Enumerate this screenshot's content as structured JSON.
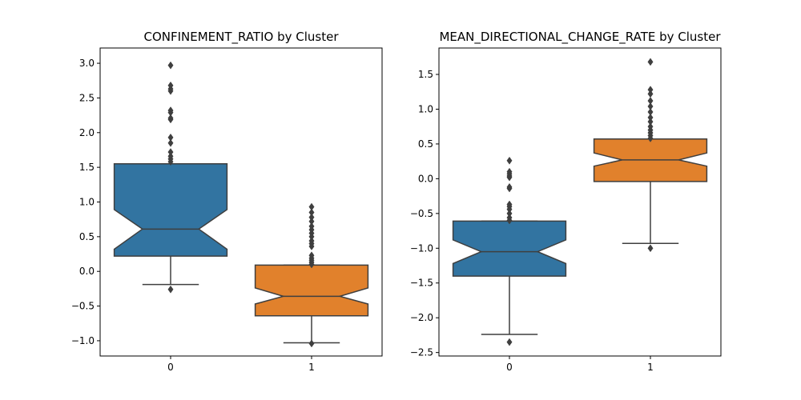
{
  "chart_data": [
    {
      "type": "boxplot",
      "title": "CONFINEMENT_RATIO by Cluster",
      "xlabel": "",
      "ylabel": "",
      "categories": [
        "0",
        "1"
      ],
      "ylim": [
        -1.22,
        3.22
      ],
      "yticks": [
        -1.0,
        -0.5,
        0.0,
        0.5,
        1.0,
        1.5,
        2.0,
        2.5,
        3.0
      ],
      "ytick_labels": [
        "−1.0",
        "−0.5",
        "0.0",
        "0.5",
        "1.0",
        "1.5",
        "2.0",
        "2.5",
        "3.0"
      ],
      "notched": true,
      "grid": false,
      "boxes": [
        {
          "category": "0",
          "color": "#3274a1",
          "whisker_low": -0.19,
          "q1": 0.22,
          "median": 0.61,
          "q3": 1.55,
          "whisker_high": 1.55,
          "notch_low": 0.32,
          "notch_high": 0.89,
          "fliers": [
            -0.26,
            1.58,
            1.62,
            1.66,
            1.72,
            1.85,
            1.93,
            2.19,
            2.21,
            2.29,
            2.32,
            2.6,
            2.63,
            2.68,
            2.97
          ]
        },
        {
          "category": "1",
          "color": "#e1812c",
          "whisker_low": -1.03,
          "q1": -0.64,
          "median": -0.36,
          "q3": 0.09,
          "whisker_high": 0.09,
          "notch_low": -0.47,
          "notch_high": -0.24,
          "fliers": [
            -1.04,
            0.1,
            0.13,
            0.16,
            0.19,
            0.23,
            0.36,
            0.4,
            0.44,
            0.5,
            0.55,
            0.6,
            0.65,
            0.72,
            0.78,
            0.85,
            0.93
          ]
        }
      ]
    },
    {
      "type": "boxplot",
      "title": "MEAN_DIRECTIONAL_CHANGE_RATE by Cluster",
      "xlabel": "",
      "ylabel": "",
      "categories": [
        "0",
        "1"
      ],
      "ylim": [
        -2.55,
        1.88
      ],
      "yticks": [
        -2.5,
        -2.0,
        -1.5,
        -1.0,
        -0.5,
        0.0,
        0.5,
        1.0,
        1.5
      ],
      "ytick_labels": [
        "−2.5",
        "−2.0",
        "−1.5",
        "−1.0",
        "−0.5",
        "0.0",
        "0.5",
        "1.0",
        "1.5"
      ],
      "notched": true,
      "grid": false,
      "boxes": [
        {
          "category": "0",
          "color": "#3274a1",
          "whisker_low": -2.24,
          "q1": -1.4,
          "median": -1.05,
          "q3": -0.61,
          "whisker_high": -0.61,
          "notch_low": -1.22,
          "notch_high": -0.88,
          "fliers": [
            -2.35,
            -0.6,
            -0.56,
            -0.5,
            -0.44,
            -0.4,
            -0.37,
            -0.14,
            -0.12,
            0.02,
            0.04,
            0.07,
            0.1,
            0.26
          ]
        },
        {
          "category": "1",
          "color": "#e1812c",
          "whisker_low": -0.93,
          "q1": -0.04,
          "median": 0.27,
          "q3": 0.57,
          "whisker_high": 0.57,
          "notch_low": 0.18,
          "notch_high": 0.37,
          "fliers": [
            -1.0,
            0.58,
            0.62,
            0.66,
            0.7,
            0.75,
            0.82,
            0.88,
            0.96,
            1.04,
            1.12,
            1.22,
            1.28,
            1.68
          ]
        }
      ]
    }
  ]
}
